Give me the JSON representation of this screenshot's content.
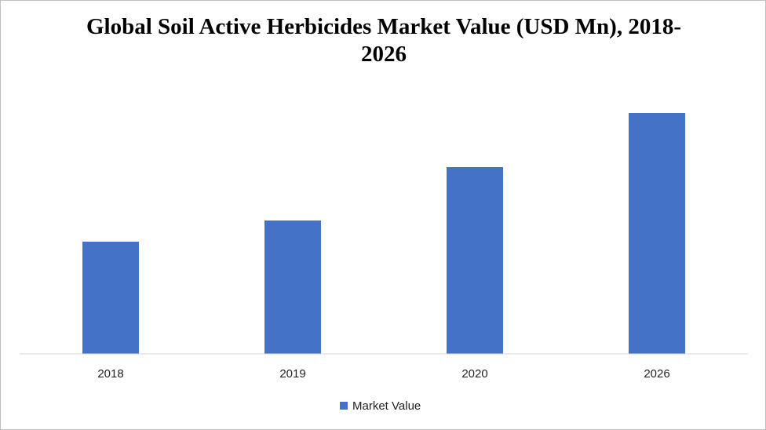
{
  "chart_data": {
    "type": "bar",
    "title": "Global Soil Active Herbicides Market Value (USD Mn), 2018-2026",
    "categories": [
      "2018",
      "2019",
      "2020",
      "2026"
    ],
    "series": [
      {
        "name": "Market Value",
        "color": "#4472c4",
        "values": [
          143,
          170,
          238,
          307
        ]
      }
    ],
    "ylim": [
      0,
      340
    ],
    "legend": "bottom"
  }
}
